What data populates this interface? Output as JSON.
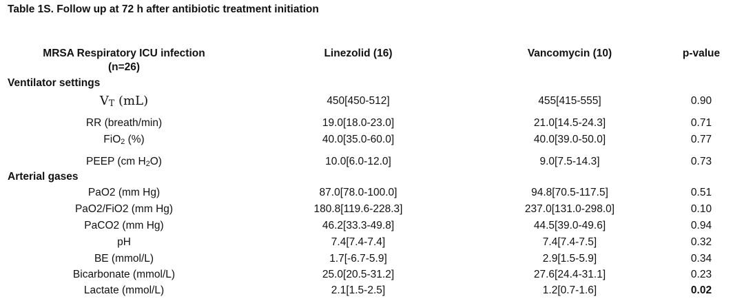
{
  "title": "Table 1S. Follow up at 72 h after antibiotic treatment initiation",
  "header": {
    "col1_line1": "MRSA Respiratory ICU infection",
    "col1_line2": "(n=26)",
    "col2": "Linezolid (16)",
    "col3": "Vancomycin (10)",
    "col4": "p-value"
  },
  "sections": {
    "ventilator": "Ventilator settings",
    "arterial": "Arterial gases"
  },
  "labels": {
    "vt_main": "V",
    "vt_sub": "T",
    "vt_unit": " (mL)",
    "fio2_main": "FiO",
    "fio2_sub": "2",
    "fio2_unit": " (%)",
    "peep_pre": "PEEP (cm H",
    "peep_sub": "2",
    "peep_post": "O)"
  },
  "rows": [
    {
      "label": "VT (mL)",
      "linezolid": "450[450-512]",
      "vancomycin": "455[415-555]",
      "p": "0.90"
    },
    {
      "label": "RR (breath/min)",
      "linezolid": "19.0[18.0-23.0]",
      "vancomycin": "21.0[14.5-24.3]",
      "p": "0.71"
    },
    {
      "label": "FiO2 (%)",
      "linezolid": "40.0[35.0-60.0]",
      "vancomycin": "40.0[39.0-50.0]",
      "p": "0.77"
    },
    {
      "label": "PEEP (cm H2O)",
      "linezolid": "10.0[6.0-12.0]",
      "vancomycin": "9.0[7.5-14.3]",
      "p": "0.73"
    },
    {
      "label": "PaO2 (mm Hg)",
      "linezolid": "87.0[78.0-100.0]",
      "vancomycin": "94.8[70.5-117.5]",
      "p": "0.51"
    },
    {
      "label": "PaO2/FiO2 (mm Hg)",
      "linezolid": "180.8[119.6-228.3]",
      "vancomycin": "237.0[131.0-298.0]",
      "p": "0.10"
    },
    {
      "label": "PaCO2 (mm Hg)",
      "linezolid": "46.2[33.3-49.8]",
      "vancomycin": "44.5[39.0-49.6]",
      "p": "0.94"
    },
    {
      "label": "pH",
      "linezolid": "7.4[7.4-7.4]",
      "vancomycin": "7.4[7.4-7.5]",
      "p": "0.32"
    },
    {
      "label": "BE (mmol/L)",
      "linezolid": "1.7[-6.7-5.9]",
      "vancomycin": "2.9[1.5-5.9]",
      "p": "0.34"
    },
    {
      "label": "Bicarbonate (mmol/L)",
      "linezolid": "25.0[20.5-31.2]",
      "vancomycin": "27.6[24.4-31.1]",
      "p": "0.23"
    },
    {
      "label": "Lactate (mmol/L)",
      "linezolid": "2.1[1.5-2.5]",
      "vancomycin": "1.2[0.7-1.6]",
      "p": "0.02"
    }
  ]
}
